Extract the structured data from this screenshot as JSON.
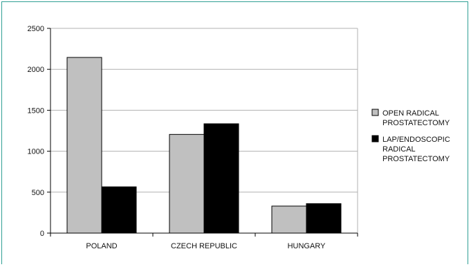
{
  "chart_data": {
    "type": "bar",
    "categories": [
      "POLAND",
      "CZECH REPUBLIC",
      "HUNGARY"
    ],
    "series": [
      {
        "name": "OPEN RADICAL PROSTATECTOMY",
        "legend_lines": [
          "OPEN RADICAL",
          "PROSTATECTOMY"
        ],
        "color": "#c0c0c0",
        "values": [
          2145,
          1205,
          330
        ]
      },
      {
        "name": "LAP/ENDOSCOPIC RADICAL PROSTATECTOMY",
        "legend_lines": [
          "LAP/ENDOSCOPIC",
          "RADICAL",
          "PROSTATECTOMY"
        ],
        "color": "#000000",
        "values": [
          565,
          1335,
          360
        ]
      }
    ],
    "ylim": [
      0,
      2500
    ],
    "yticks": [
      0,
      500,
      1000,
      1500,
      2000,
      2500
    ],
    "grid": true,
    "legend_position": "right",
    "title": "",
    "xlabel": "",
    "ylabel": ""
  }
}
